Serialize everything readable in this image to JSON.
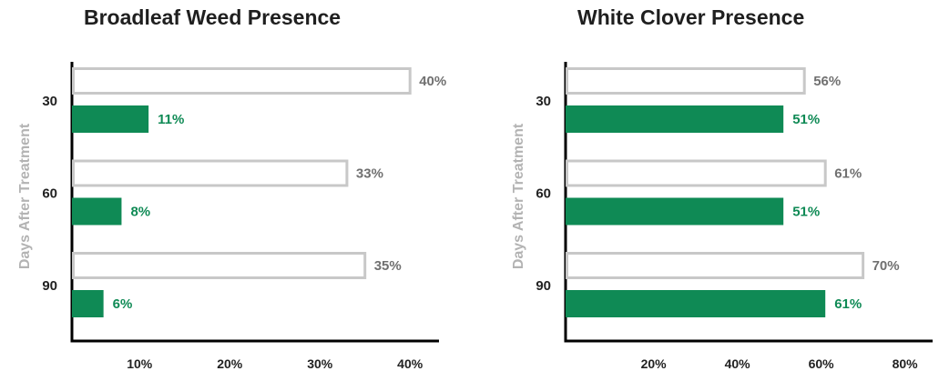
{
  "chart_data": [
    {
      "type": "bar",
      "title": "Broadleaf Weed Presence",
      "xlabel": "",
      "ylabel": "Days After Treatment",
      "categories": [
        "30",
        "60",
        "90"
      ],
      "series": [
        {
          "values": [
            40,
            33,
            35
          ],
          "labels": [
            "40%",
            "33%",
            "35%"
          ]
        },
        {
          "values": [
            11,
            8,
            6
          ],
          "labels": [
            "11%",
            "8%",
            "6%"
          ]
        }
      ],
      "xlim": [
        2.5,
        42
      ],
      "xticks": [
        10,
        20,
        30,
        40
      ],
      "xtick_labels": [
        "10%",
        "20%",
        "30%",
        "40%"
      ],
      "colors": {
        "outline_series": "#c8c8c8",
        "outline_label": "#707070",
        "filled_series": "#0f8a55"
      }
    },
    {
      "type": "bar",
      "title": "White Clover Presence",
      "xlabel": "",
      "ylabel": "Days After Treatment",
      "categories": [
        "30",
        "60",
        "90"
      ],
      "series": [
        {
          "values": [
            56,
            61,
            70
          ],
          "labels": [
            "56%",
            "61%",
            "70%"
          ]
        },
        {
          "values": [
            51,
            51,
            61
          ],
          "labels": [
            "51%",
            "51%",
            "61%"
          ]
        }
      ],
      "xlim": [
        -1,
        84
      ],
      "xticks": [
        20,
        40,
        60,
        80
      ],
      "xtick_labels": [
        "20%",
        "40%",
        "60%",
        "80%"
      ],
      "colors": {
        "outline_series": "#c8c8c8",
        "outline_label": "#707070",
        "filled_series": "#0f8a55"
      }
    }
  ]
}
